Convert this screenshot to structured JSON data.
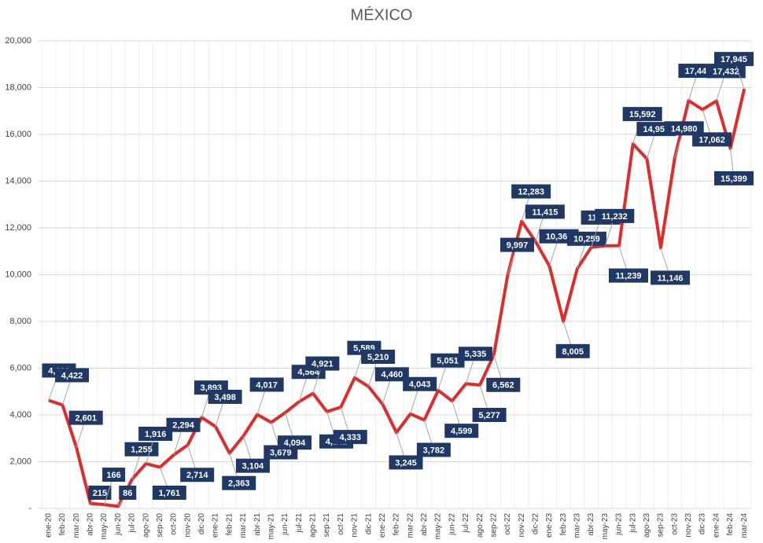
{
  "chart_data": {
    "type": "line",
    "title": "MÉXICO",
    "categories": [
      "ene-20",
      "feb-20",
      "mar-20",
      "abr-20",
      "may-20",
      "jun-20",
      "jul-20",
      "ago-20",
      "sep-20",
      "oct-20",
      "nov-20",
      "dic-20",
      "ene-21",
      "feb-21",
      "mar-21",
      "abr-21",
      "may-21",
      "jun-21",
      "jul-21",
      "ago-21",
      "sep-21",
      "oct-21",
      "nov-21",
      "dic-21",
      "ene-22",
      "feb-22",
      "mar-22",
      "abr-22",
      "may-22",
      "jun-22",
      "jul-22",
      "ago-22",
      "sep-22",
      "oct-22",
      "nov-22",
      "dic-22",
      "ene-23",
      "feb-23",
      "mar-23",
      "abr-23",
      "may-23",
      "jun-23",
      "jul-23",
      "ago-23",
      "sep-23",
      "oct-23",
      "nov-23",
      "dic-23",
      "ene-24",
      "feb-24",
      "mar-24"
    ],
    "values": [
      4622,
      4422,
      2601,
      215,
      166,
      86,
      1255,
      1916,
      1761,
      2294,
      2714,
      3893,
      3498,
      2363,
      3104,
      4017,
      3679,
      4094,
      4564,
      4921,
      4142,
      4333,
      5589,
      5210,
      4460,
      3245,
      4043,
      3782,
      5051,
      4599,
      5335,
      5277,
      6562,
      9997,
      12283,
      11415,
      10363,
      8005,
      10259,
      11165,
      11232,
      11239,
      15592,
      14953,
      11146,
      14980,
      17443,
      17062,
      17432,
      15399,
      17945
    ],
    "value_labels": [
      "4,622",
      "4,422",
      "2,601",
      "215",
      "166",
      "86",
      "1,255",
      "1,916",
      "1,761",
      "2,294",
      "2,714",
      "3,893",
      "3,498",
      "2,363",
      "3,104",
      "4,017",
      "3,679",
      "4,094",
      "4,564",
      "4,921",
      "4,142",
      "4,333",
      "5,589",
      "5,210",
      "4,460",
      "3,245",
      "4,043",
      "3,782",
      "5,051",
      "4,599",
      "5,335",
      "5,277",
      "6,562",
      "9,997",
      "12,283",
      "11,415",
      "10,363",
      "8,005",
      "10,259",
      "11,165",
      "11,232",
      "11,239",
      "15,592",
      "14,953",
      "11,146",
      "14,980",
      "17,443",
      "17,062",
      "17,432",
      "15,399",
      "17,945"
    ],
    "color": "#e02b2b",
    "label_color": "#1f3864",
    "ylim": [
      0,
      20000
    ],
    "yticks": [
      {
        "value": 0,
        "label": "-"
      },
      {
        "value": 2000,
        "label": "2,000"
      },
      {
        "value": 4000,
        "label": "4,000"
      },
      {
        "value": 6000,
        "label": "6,000"
      },
      {
        "value": 8000,
        "label": "8,000"
      },
      {
        "value": 10000,
        "label": "10,000"
      },
      {
        "value": 12000,
        "label": "12,000"
      },
      {
        "value": 14000,
        "label": "14,000"
      },
      {
        "value": 16000,
        "label": "16,000"
      },
      {
        "value": 18000,
        "label": "18,000"
      },
      {
        "value": 20000,
        "label": "20,000"
      }
    ],
    "grid": true
  }
}
